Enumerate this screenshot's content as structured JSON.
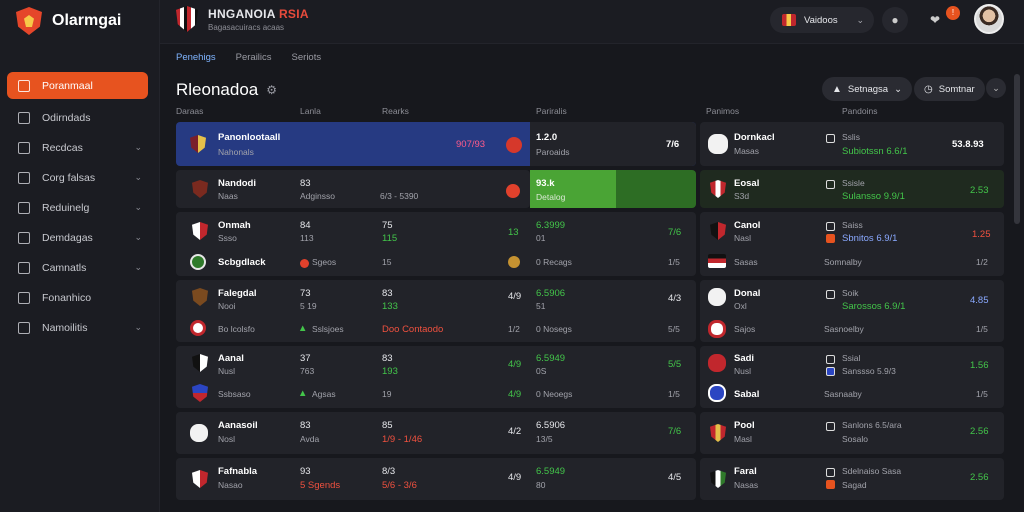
{
  "brand": {
    "name": "Olarmgai"
  },
  "sidebar": {
    "items": [
      {
        "label": "Poranmaal",
        "active": true,
        "chevron": false
      },
      {
        "label": "Odirndads",
        "chevron": false
      },
      {
        "label": "Recdcas",
        "chevron": true
      },
      {
        "label": "Corg falsas",
        "chevron": true
      },
      {
        "label": "Reduinelg",
        "chevron": true
      },
      {
        "label": "Demdagas",
        "chevron": true
      },
      {
        "label": "Camnatls",
        "chevron": true
      },
      {
        "label": "Fonanhico",
        "chevron": false
      },
      {
        "label": "Namoilitis",
        "chevron": true
      }
    ]
  },
  "topbar": {
    "match_title_a": "HNGANOIA",
    "match_title_b": "RSIA",
    "match_sub": "Bagasacuiracs acaas",
    "lang_label": "Vaidoos",
    "bell_count": "!"
  },
  "tabs": [
    "Penehigs",
    "Perailics",
    "Seriots"
  ],
  "heading": {
    "title": "Rleonadoa",
    "filter_label": "Setnagsa",
    "sort_label": "Somtnar"
  },
  "columns": {
    "c1": "Daraas",
    "c2": "Lanla",
    "c3": "Rearks",
    "c4": "Pariralis",
    "c5": "Panimos",
    "c6": "Pandoins"
  },
  "rows": {
    "r1": {
      "name": "Panonlootaall",
      "sub": "Nahonals",
      "score": "907/93",
      "odds": "1.2.0",
      "odds_sub": "Paroaids",
      "num": "7/6"
    },
    "r2": {
      "name": "Nandodi",
      "sub": "Naas",
      "a": "83",
      "b": "Adginsso",
      "c": "6/3 - 5390",
      "odds": "93.k",
      "odds_sub": "Detalog"
    },
    "r3": {
      "name": "Onmah",
      "sub": "Ssso",
      "a": "84",
      "b": "113",
      "c": "75",
      "d": "115",
      "e": "13",
      "odds": "6.3999",
      "odds_sub": "01",
      "num": "7/6"
    },
    "r4": {
      "name": "Scbgdlack",
      "a": "Sgeos",
      "b": "15",
      "odds": "0 Recags",
      "num": "1/5"
    },
    "r5": {
      "name": "Falegdal",
      "sub": "Nooi",
      "a": "73",
      "b": "5 19",
      "c": "83",
      "d": "133",
      "e": "4/9",
      "odds": "6.5906",
      "odds_sub": "51",
      "num": "4/3"
    },
    "r6": {
      "name": "Bo lcolsfo",
      "a": "Sslsjoes",
      "b": "Doo Contaodo",
      "c": "1/2",
      "odds": "0 Nosegs",
      "num": "5/5"
    },
    "r7": {
      "name": "Aanal",
      "sub": "Nusl",
      "a": "37",
      "b": "763",
      "c": "83",
      "d": "193",
      "e": "4/9",
      "odds": "6.5949",
      "odds_sub": "0S",
      "num": "5/5"
    },
    "r8": {
      "name": "Ssbsaso",
      "a": "Agsas",
      "b": "19",
      "c": "4/9",
      "odds": "0 Neoegs",
      "num": "1/5"
    },
    "r9": {
      "name": "Aanasoil",
      "sub": "Nosl",
      "a": "83",
      "b": "Avda",
      "c": "85",
      "d": "1/9 - 1/46",
      "e": "4/2",
      "odds": "6.5906",
      "odds_sub": "13/5",
      "num": "7/6"
    },
    "r10": {
      "name": "Fafnabla",
      "sub": "Nasao",
      "a": "93",
      "b": "5 Sgends",
      "c": "8/3",
      "d": "5/6 - 3/6",
      "e": "4/9",
      "odds": "6.5949",
      "odds_sub": "80",
      "num": "4/5"
    }
  },
  "right": {
    "r1": {
      "name": "Dornkacl",
      "sub": "Masas",
      "a": "Sslis",
      "b": "Subiotssn 6.6/1",
      "num": "53.8.93"
    },
    "r2": {
      "name": "Eosal",
      "sub": "S3d",
      "a": "Ssisle",
      "b": "Sulansso 9.9/1",
      "num": "2.53"
    },
    "r3": {
      "name": "Canol",
      "sub": "Nasl",
      "a": "Saiss",
      "b": "Sbnitos 6.9/1",
      "num": "1.25"
    },
    "r4": {
      "name": "Sasas",
      "a": "Somnalby",
      "num": "1/2"
    },
    "r5": {
      "name": "Donal",
      "sub": "Oxl",
      "a": "Soik",
      "b": "Sarossos 6.9/1",
      "num": "4.85"
    },
    "r6": {
      "name": "Sajos",
      "a": "Sasnoelby",
      "num": "1/5"
    },
    "r7": {
      "name": "Sadi",
      "sub": "Nusl",
      "a": "Ssial",
      "b": "Sanssso 5.9/3",
      "num": "1.56"
    },
    "r8": {
      "name": "Sabal",
      "a": "Sasnaaby",
      "num": "1/5"
    },
    "r9": {
      "name": "Pool",
      "sub": "Masl",
      "a": "Sanlons 6.5/ara",
      "b": "Sosalo",
      "num": "2.56"
    },
    "r10": {
      "name": "Faral",
      "sub": "Nasas",
      "a": "Sdelnaiso Sasa",
      "b": "Sagad",
      "num": "2.56"
    }
  }
}
